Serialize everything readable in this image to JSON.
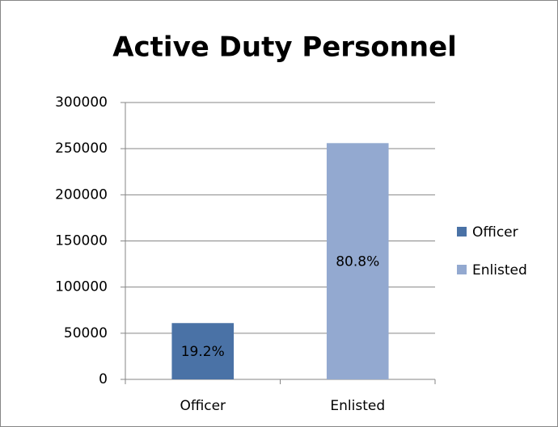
{
  "chart_data": {
    "type": "bar",
    "title": "Active Duty Personnel",
    "categories": [
      "Officer",
      "Enlisted"
    ],
    "values": [
      61000,
      256000
    ],
    "share_labels": [
      "19.2%",
      "80.8%"
    ],
    "colors": [
      "#4a72a6",
      "#93a9d0"
    ],
    "ylim": [
      0,
      300000
    ],
    "yticks": [
      0,
      50000,
      100000,
      150000,
      200000,
      250000,
      300000
    ],
    "grid": true,
    "legend": "right"
  }
}
